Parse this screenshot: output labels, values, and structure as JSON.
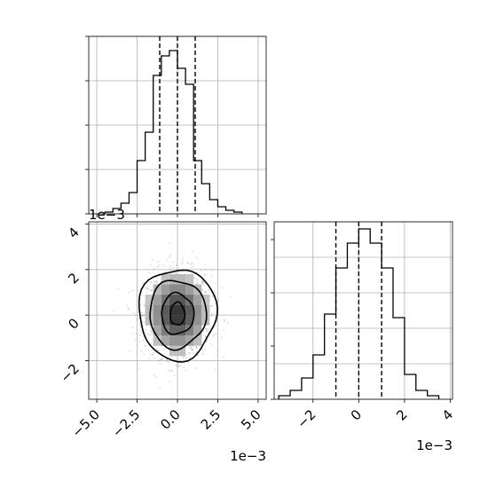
{
  "chart_data": [
    {
      "type": "histogram",
      "panel": "top-left marginal (x)",
      "xlim": [
        -5.5,
        5.5
      ],
      "x_offset_label": "",
      "bin_edges": [
        -4.5,
        -4.0,
        -3.5,
        -3.0,
        -2.5,
        -2.0,
        -1.5,
        -1.0,
        -0.5,
        0.0,
        0.5,
        1.0,
        1.5,
        2.0,
        2.5,
        3.0,
        3.5,
        4.0
      ],
      "counts": [
        0.01,
        0.03,
        0.06,
        0.12,
        0.3,
        0.46,
        0.78,
        0.89,
        0.92,
        0.82,
        0.73,
        0.3,
        0.17,
        0.08,
        0.04,
        0.02,
        0.01
      ],
      "quantile_lines": [
        -1.1,
        0.0,
        1.1
      ],
      "grid": true,
      "y_tick_labels_shown": false
    },
    {
      "type": "scatter-density-contour",
      "panel": "bottom-left joint (x vs y)",
      "xlim": [
        -5.5,
        5.5
      ],
      "ylim": [
        -3.7,
        4.1
      ],
      "x_ticks": [
        "−5.0",
        "−2.5",
        "0.0",
        "2.5",
        "5.0"
      ],
      "x_tick_values": [
        -5.0,
        -2.5,
        0.0,
        2.5,
        5.0
      ],
      "y_ticks": [
        "−2",
        "0",
        "2",
        "4"
      ],
      "y_tick_values": [
        -2,
        0,
        2,
        4
      ],
      "x_offset_label": "1e−3",
      "y_offset_label": "1e−3",
      "contour_levels": [
        {
          "rx": 2.4,
          "ry": 2.0
        },
        {
          "rx": 1.75,
          "ry": 1.5
        },
        {
          "rx": 1.0,
          "ry": 0.9
        },
        {
          "rx": 0.45,
          "ry": 0.5
        }
      ],
      "center": [
        0.0,
        0.05
      ],
      "std": [
        1.05,
        0.95
      ],
      "grid": true
    },
    {
      "type": "histogram",
      "panel": "bottom-right marginal (y)",
      "xlim": [
        -3.7,
        4.1
      ],
      "x_ticks": [
        "−2",
        "0",
        "2",
        "4"
      ],
      "x_tick_values": [
        -2,
        0,
        2,
        4
      ],
      "x_offset_label": "1e−3",
      "bin_edges": [
        -3.5,
        -3.0,
        -2.5,
        -2.0,
        -1.5,
        -1.0,
        -0.5,
        0.0,
        0.5,
        1.0,
        1.5,
        2.0,
        2.5,
        3.0,
        3.5
      ],
      "counts": [
        0.02,
        0.05,
        0.12,
        0.25,
        0.48,
        0.74,
        0.88,
        0.96,
        0.88,
        0.74,
        0.46,
        0.14,
        0.05,
        0.02
      ],
      "quantile_lines": [
        -1.0,
        0.0,
        1.0
      ],
      "grid": true,
      "y_tick_labels_shown": false
    }
  ]
}
